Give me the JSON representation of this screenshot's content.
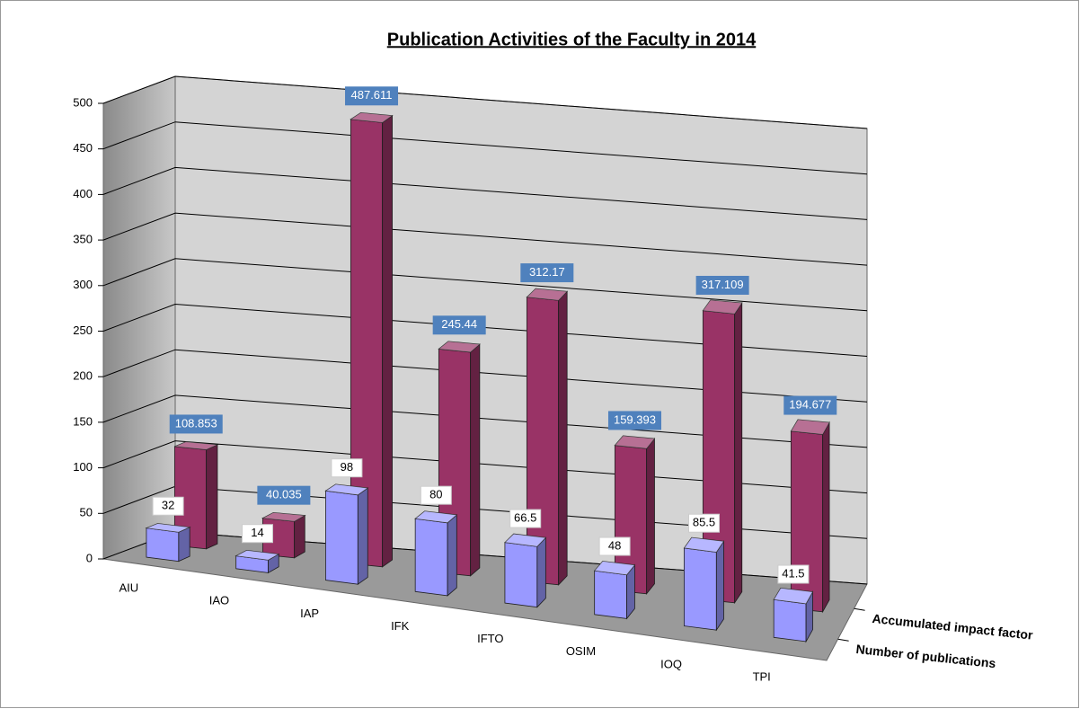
{
  "chart_data": {
    "type": "bar3d",
    "title": "Publication Activities of the Faculty in 2014",
    "categories": [
      "AIU",
      "IAO",
      "IAP",
      "IFK",
      "IFTO",
      "OSIM",
      "IOQ",
      "TPI"
    ],
    "series": [
      {
        "name": "Number of publications",
        "color": "#9999ff",
        "values": [
          32,
          14,
          98,
          80,
          66.5,
          48,
          85.5,
          41.5
        ]
      },
      {
        "name": "Accumulated impact factor",
        "color": "#993366",
        "values": [
          108.853,
          40.035,
          487.611,
          245.44,
          312.17,
          159.393,
          317.109,
          194.677
        ]
      }
    ],
    "ylim": [
      0,
      500
    ],
    "yticks": [
      0,
      50,
      100,
      150,
      200,
      250,
      300,
      350,
      400,
      450,
      500
    ],
    "grid": true
  }
}
